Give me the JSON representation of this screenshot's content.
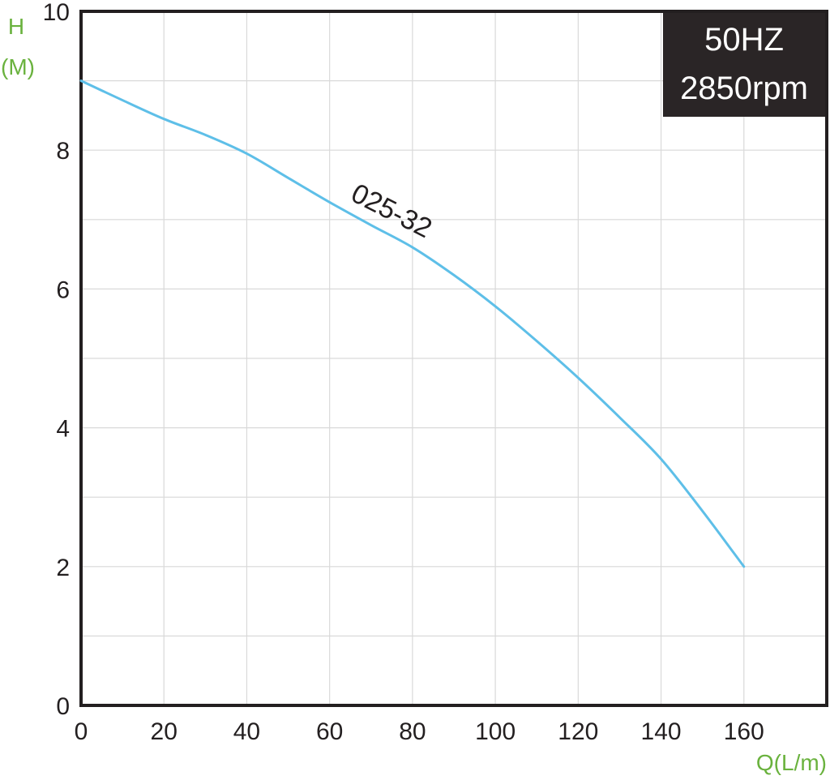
{
  "chart_data": {
    "type": "line",
    "xlabel": "Q(L/m)",
    "ylabel_line1": "H",
    "ylabel_line2": "(M)",
    "xlim": [
      0,
      180
    ],
    "ylim": [
      0,
      10
    ],
    "x_ticks": [
      0,
      20,
      40,
      60,
      80,
      100,
      120,
      140,
      160
    ],
    "y_ticks": [
      0,
      2,
      4,
      6,
      8,
      10
    ],
    "grid": true,
    "badge": {
      "line1": "50HZ",
      "line2": "2850rpm",
      "placement": "top-right"
    },
    "series": [
      {
        "name": "025-32",
        "color": "#5ebfe8",
        "x": [
          0,
          10,
          20,
          30,
          40,
          50,
          60,
          70,
          80,
          90,
          100,
          110,
          120,
          130,
          140,
          150,
          160
        ],
        "y": [
          9.0,
          8.72,
          8.45,
          8.22,
          7.95,
          7.6,
          7.25,
          6.92,
          6.6,
          6.2,
          5.75,
          5.25,
          4.72,
          4.15,
          3.55,
          2.8,
          2.0
        ]
      }
    ]
  },
  "colors": {
    "axis": "#231f20",
    "grid": "#d9d9d9",
    "axis_label": "#6ab23e",
    "badge_bg": "#2a2526"
  }
}
